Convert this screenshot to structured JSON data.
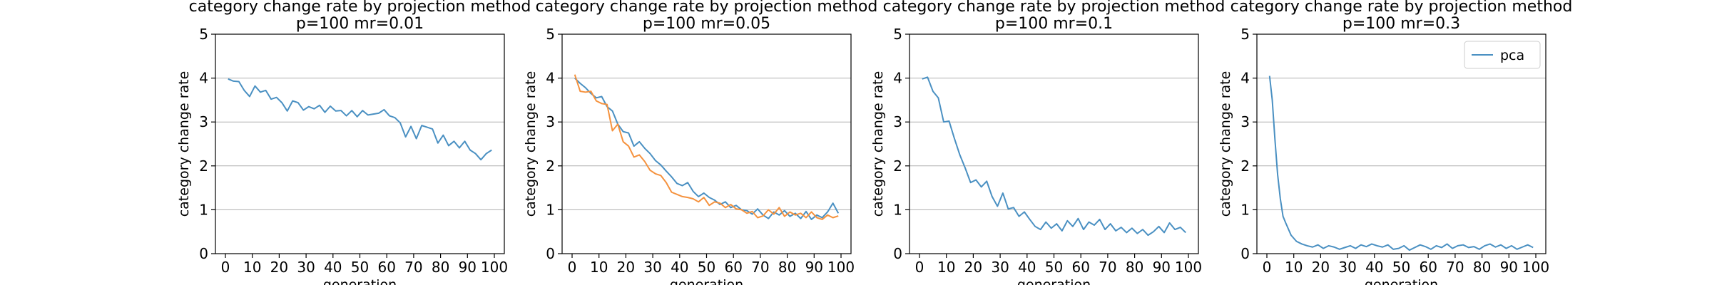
{
  "chart_data": [
    {
      "type": "line",
      "title": "category change rate by projection method",
      "subtitle": "p=100 mr=0.01",
      "xlabel": "generation",
      "ylabel": "category change rate",
      "xlim": [
        0,
        100
      ],
      "ylim": [
        0,
        5
      ],
      "xticks": [
        "0",
        "10",
        "20",
        "30",
        "40",
        "50",
        "60",
        "70",
        "80",
        "90",
        "100"
      ],
      "yticks": [
        "0",
        "1",
        "2",
        "3",
        "4",
        "5"
      ],
      "grid": "y",
      "colors": [
        "#4a90c2",
        "#f5923e"
      ],
      "legend": null,
      "series": [
        {
          "x": [
            1,
            3,
            5,
            7,
            9,
            11,
            13,
            15,
            17,
            19,
            21,
            23,
            25,
            27,
            29,
            31,
            33,
            35,
            37,
            39,
            41,
            43,
            45,
            47,
            49,
            51,
            53,
            55,
            57,
            59,
            61,
            63,
            65,
            67,
            69,
            71,
            73,
            75,
            77,
            79,
            81,
            83,
            85,
            87,
            89,
            91,
            93,
            95,
            97,
            99
          ],
          "values": [
            3.98,
            3.93,
            3.92,
            3.72,
            3.58,
            3.82,
            3.68,
            3.72,
            3.52,
            3.56,
            3.44,
            3.25,
            3.48,
            3.44,
            3.27,
            3.35,
            3.3,
            3.38,
            3.22,
            3.36,
            3.25,
            3.26,
            3.14,
            3.26,
            3.12,
            3.26,
            3.16,
            3.18,
            3.2,
            3.28,
            3.14,
            3.1,
            2.98,
            2.66,
            2.9,
            2.62,
            2.92,
            2.88,
            2.84,
            2.52,
            2.7,
            2.46,
            2.56,
            2.41,
            2.56,
            2.36,
            2.28,
            2.14,
            2.28,
            2.36
          ]
        }
      ]
    },
    {
      "type": "line",
      "title": "category change rate by projection method",
      "subtitle": "p=100 mr=0.05",
      "xlabel": "generation",
      "ylabel": "category change rate",
      "xlim": [
        0,
        100
      ],
      "ylim": [
        0,
        5
      ],
      "xticks": [
        "0",
        "10",
        "20",
        "30",
        "40",
        "50",
        "60",
        "70",
        "80",
        "90",
        "100"
      ],
      "yticks": [
        "0",
        "1",
        "2",
        "3",
        "4",
        "5"
      ],
      "grid": "y",
      "colors": [
        "#4a90c2",
        "#f5923e"
      ],
      "legend": null,
      "series": [
        {
          "x": [
            1,
            3,
            5,
            7,
            9,
            11,
            13,
            15,
            17,
            19,
            21,
            23,
            25,
            27,
            29,
            31,
            33,
            35,
            37,
            39,
            41,
            43,
            45,
            47,
            49,
            51,
            53,
            55,
            57,
            59,
            61,
            63,
            65,
            67,
            69,
            71,
            73,
            75,
            77,
            79,
            81,
            83,
            85,
            87,
            89,
            91,
            93,
            95,
            97,
            99
          ],
          "values": [
            4.0,
            3.88,
            3.78,
            3.65,
            3.55,
            3.58,
            3.35,
            3.25,
            2.95,
            2.78,
            2.75,
            2.45,
            2.55,
            2.4,
            2.28,
            2.12,
            2.02,
            1.88,
            1.75,
            1.6,
            1.55,
            1.62,
            1.42,
            1.3,
            1.38,
            1.28,
            1.22,
            1.12,
            1.18,
            1.05,
            1.1,
            1.0,
            0.98,
            0.9,
            1.02,
            0.88,
            0.8,
            0.95,
            0.88,
            0.98,
            0.85,
            0.92,
            0.8,
            0.96,
            0.78,
            0.88,
            0.82,
            0.95,
            1.15,
            0.92
          ]
        },
        {
          "x": [
            1,
            3,
            5,
            7,
            9,
            11,
            13,
            15,
            17,
            19,
            21,
            23,
            25,
            27,
            29,
            31,
            33,
            35,
            37,
            39,
            41,
            43,
            45,
            47,
            49,
            51,
            53,
            55,
            57,
            59,
            61,
            63,
            65,
            67,
            69,
            71,
            73,
            75,
            77,
            79,
            81,
            83,
            85,
            87,
            89,
            91,
            93,
            95,
            97,
            99
          ],
          "values": [
            4.08,
            3.7,
            3.68,
            3.7,
            3.48,
            3.42,
            3.4,
            2.8,
            2.95,
            2.55,
            2.45,
            2.2,
            2.25,
            2.1,
            1.9,
            1.82,
            1.78,
            1.62,
            1.4,
            1.35,
            1.3,
            1.28,
            1.25,
            1.18,
            1.28,
            1.1,
            1.18,
            1.15,
            1.05,
            1.12,
            1.02,
            1.0,
            0.92,
            0.96,
            0.82,
            0.86,
            1.0,
            0.9,
            1.05,
            0.85,
            0.95,
            0.88,
            0.92,
            0.82,
            0.95,
            0.82,
            0.78,
            0.88,
            0.82,
            0.86
          ]
        }
      ]
    },
    {
      "type": "line",
      "title": "category change rate by projection method",
      "subtitle": "p=100 mr=0.1",
      "xlabel": "generation",
      "ylabel": "category change rate",
      "xlim": [
        0,
        100
      ],
      "ylim": [
        0,
        5
      ],
      "xticks": [
        "0",
        "10",
        "20",
        "30",
        "40",
        "50",
        "60",
        "70",
        "80",
        "90",
        "100"
      ],
      "yticks": [
        "0",
        "1",
        "2",
        "3",
        "4",
        "5"
      ],
      "grid": "y",
      "colors": [
        "#4a90c2",
        "#f5923e"
      ],
      "legend": null,
      "series": [
        {
          "x": [
            1,
            3,
            5,
            7,
            9,
            11,
            13,
            15,
            17,
            19,
            21,
            23,
            25,
            27,
            29,
            31,
            33,
            35,
            37,
            39,
            41,
            43,
            45,
            47,
            49,
            51,
            53,
            55,
            57,
            59,
            61,
            63,
            65,
            67,
            69,
            71,
            73,
            75,
            77,
            79,
            81,
            83,
            85,
            87,
            89,
            91,
            93,
            95,
            97,
            99
          ],
          "values": [
            3.98,
            4.02,
            3.7,
            3.55,
            3.0,
            3.02,
            2.62,
            2.25,
            1.95,
            1.62,
            1.68,
            1.52,
            1.65,
            1.3,
            1.08,
            1.38,
            1.02,
            1.05,
            0.85,
            0.95,
            0.78,
            0.62,
            0.55,
            0.72,
            0.58,
            0.68,
            0.52,
            0.75,
            0.62,
            0.8,
            0.55,
            0.72,
            0.65,
            0.78,
            0.55,
            0.68,
            0.52,
            0.6,
            0.48,
            0.58,
            0.46,
            0.55,
            0.42,
            0.5,
            0.62,
            0.48,
            0.7,
            0.55,
            0.6,
            0.48
          ]
        }
      ]
    },
    {
      "type": "line",
      "title": "category change rate by projection method",
      "subtitle": "p=100 mr=0.3",
      "xlabel": "generation",
      "ylabel": "category change rate",
      "xlim": [
        0,
        100
      ],
      "ylim": [
        0,
        5
      ],
      "xticks": [
        "0",
        "10",
        "20",
        "30",
        "40",
        "50",
        "60",
        "70",
        "80",
        "90",
        "100"
      ],
      "yticks": [
        "0",
        "1",
        "2",
        "3",
        "4",
        "5"
      ],
      "grid": "y",
      "colors": [
        "#4a90c2"
      ],
      "legend": "top-right",
      "series": [
        {
          "name": "pca",
          "x": [
            1,
            2,
            3,
            4,
            5,
            6,
            7,
            9,
            11,
            13,
            15,
            17,
            19,
            21,
            23,
            25,
            27,
            29,
            31,
            33,
            35,
            37,
            39,
            41,
            43,
            45,
            47,
            49,
            51,
            53,
            55,
            57,
            59,
            61,
            63,
            65,
            67,
            69,
            71,
            73,
            75,
            77,
            79,
            81,
            83,
            85,
            87,
            89,
            91,
            93,
            95,
            97,
            99
          ],
          "values": [
            4.05,
            3.5,
            2.6,
            1.8,
            1.25,
            0.85,
            0.7,
            0.42,
            0.28,
            0.22,
            0.18,
            0.15,
            0.2,
            0.12,
            0.18,
            0.15,
            0.1,
            0.14,
            0.18,
            0.12,
            0.2,
            0.16,
            0.22,
            0.18,
            0.15,
            0.2,
            0.1,
            0.12,
            0.18,
            0.08,
            0.14,
            0.2,
            0.16,
            0.1,
            0.18,
            0.14,
            0.22,
            0.12,
            0.18,
            0.2,
            0.14,
            0.16,
            0.1,
            0.18,
            0.22,
            0.15,
            0.2,
            0.12,
            0.18,
            0.1,
            0.15,
            0.2,
            0.14
          ]
        }
      ]
    }
  ]
}
